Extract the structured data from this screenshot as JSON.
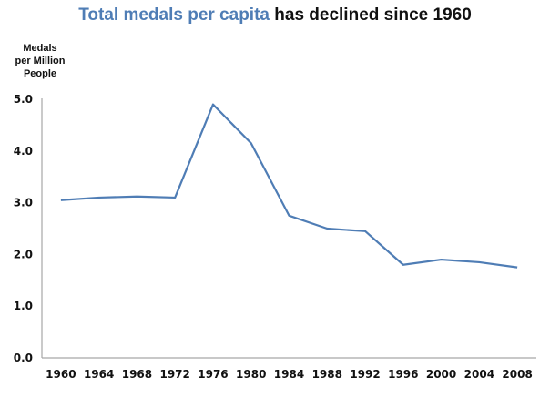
{
  "chart_data": {
    "type": "line",
    "title_highlight": "Total medals per capita",
    "title_rest": "has declined since 1960",
    "ylabel_lines": [
      "Medals",
      "per Million",
      "People"
    ],
    "xlabel": "",
    "categories": [
      "1960",
      "1964",
      "1968",
      "1972",
      "1976",
      "1980",
      "1984",
      "1988",
      "1992",
      "1996",
      "2000",
      "2004",
      "2008"
    ],
    "series": [
      {
        "name": "Total medals per capita",
        "color": "#4f7db5",
        "values": [
          3.05,
          3.1,
          3.12,
          3.1,
          4.9,
          4.15,
          2.75,
          2.5,
          2.45,
          1.8,
          1.9,
          1.85,
          1.75
        ]
      }
    ],
    "yticks": [
      "0.0",
      "1.0",
      "2.0",
      "3.0",
      "4.0",
      "5.0"
    ],
    "ylim": [
      0,
      5
    ],
    "grid": false,
    "legend": "none"
  }
}
